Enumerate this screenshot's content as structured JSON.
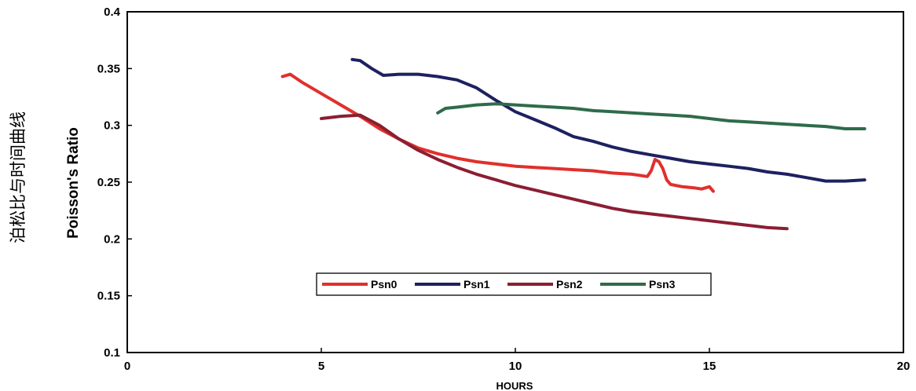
{
  "chart_data": {
    "type": "line",
    "title": "泊松比与时间曲线",
    "xlabel": "HOURS",
    "ylabel": "Poisson's Ratio",
    "xlim": [
      0,
      20
    ],
    "ylim": [
      0.1,
      0.4
    ],
    "xticks": [
      0,
      5,
      10,
      15,
      20
    ],
    "yticks": [
      0.1,
      0.15,
      0.2,
      0.25,
      0.3,
      0.35,
      0.4
    ],
    "grid": false,
    "legend_position": "center-left",
    "series": [
      {
        "name": "Psn0",
        "color": "#e0302c",
        "x": [
          4.0,
          4.2,
          4.5,
          5.0,
          5.5,
          6.0,
          6.5,
          7.0,
          7.5,
          8.0,
          8.5,
          9.0,
          9.5,
          10.0,
          10.5,
          11.0,
          11.5,
          12.0,
          12.5,
          13.0,
          13.4,
          13.5,
          13.6,
          13.7,
          13.8,
          13.9,
          14.0,
          14.3,
          14.6,
          14.8,
          15.0,
          15.1
        ],
        "y": [
          0.343,
          0.345,
          0.338,
          0.328,
          0.318,
          0.308,
          0.297,
          0.288,
          0.28,
          0.275,
          0.271,
          0.268,
          0.266,
          0.264,
          0.263,
          0.262,
          0.261,
          0.26,
          0.258,
          0.257,
          0.255,
          0.26,
          0.27,
          0.268,
          0.262,
          0.252,
          0.248,
          0.246,
          0.245,
          0.244,
          0.246,
          0.242
        ]
      },
      {
        "name": "Psn1",
        "color": "#1d2160",
        "x": [
          5.8,
          6.0,
          6.3,
          6.6,
          7.0,
          7.5,
          8.0,
          8.5,
          9.0,
          9.5,
          10.0,
          10.5,
          11.0,
          11.5,
          12.0,
          12.5,
          13.0,
          13.5,
          14.0,
          14.5,
          15.0,
          15.5,
          16.0,
          16.5,
          17.0,
          17.5,
          18.0,
          18.5,
          19.0
        ],
        "y": [
          0.358,
          0.357,
          0.35,
          0.344,
          0.345,
          0.345,
          0.343,
          0.34,
          0.333,
          0.322,
          0.312,
          0.305,
          0.298,
          0.29,
          0.286,
          0.281,
          0.277,
          0.274,
          0.271,
          0.268,
          0.266,
          0.264,
          0.262,
          0.259,
          0.257,
          0.254,
          0.251,
          0.251,
          0.252
        ]
      },
      {
        "name": "Psn2",
        "color": "#8b1e32",
        "x": [
          5.0,
          5.5,
          6.0,
          6.5,
          7.0,
          7.5,
          8.0,
          8.5,
          9.0,
          9.5,
          10.0,
          10.5,
          11.0,
          11.5,
          12.0,
          12.5,
          13.0,
          13.5,
          14.0,
          14.5,
          15.0,
          15.5,
          16.0,
          16.5,
          17.0
        ],
        "y": [
          0.306,
          0.308,
          0.309,
          0.3,
          0.288,
          0.278,
          0.27,
          0.263,
          0.257,
          0.252,
          0.247,
          0.243,
          0.239,
          0.235,
          0.231,
          0.227,
          0.224,
          0.222,
          0.22,
          0.218,
          0.216,
          0.214,
          0.212,
          0.21,
          0.209
        ]
      },
      {
        "name": "Psn3",
        "color": "#2f6b4a",
        "x": [
          8.0,
          8.2,
          8.5,
          9.0,
          9.5,
          10.0,
          10.5,
          11.0,
          11.5,
          12.0,
          12.5,
          13.0,
          13.5,
          14.0,
          14.5,
          15.0,
          15.5,
          16.0,
          16.5,
          17.0,
          17.5,
          18.0,
          18.5,
          19.0
        ],
        "y": [
          0.311,
          0.315,
          0.316,
          0.318,
          0.319,
          0.318,
          0.317,
          0.316,
          0.315,
          0.313,
          0.312,
          0.311,
          0.31,
          0.309,
          0.308,
          0.306,
          0.304,
          0.303,
          0.302,
          0.301,
          0.3,
          0.299,
          0.297,
          0.297
        ]
      }
    ]
  }
}
